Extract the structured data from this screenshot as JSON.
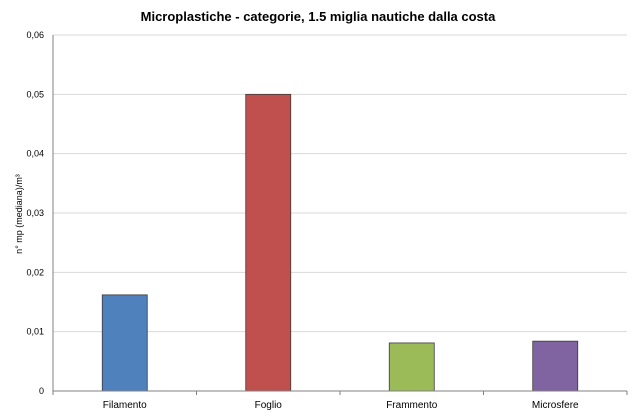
{
  "chart_data": {
    "type": "bar",
    "title": "Microplastiche - categorie, 1.5 miglia nautiche dalla costa",
    "ylabel": "n° mp (mediana)/m³",
    "xlabel": "",
    "categories": [
      "Filamento",
      "Foglio",
      "Frammento",
      "Microsfere"
    ],
    "values": [
      0.0162,
      0.05,
      0.0081,
      0.0084
    ],
    "colors": [
      "#4f81bd",
      "#c0504d",
      "#9bbb59",
      "#8064a2"
    ],
    "ylim": [
      0,
      0.06
    ],
    "yticks": [
      0,
      0.01,
      0.02,
      0.03,
      0.04,
      0.05,
      0.06
    ],
    "ytick_labels": [
      "0",
      "0,01",
      "0,02",
      "0,03",
      "0,04",
      "0,05",
      "0,06"
    ],
    "grid": true,
    "legend": false
  }
}
